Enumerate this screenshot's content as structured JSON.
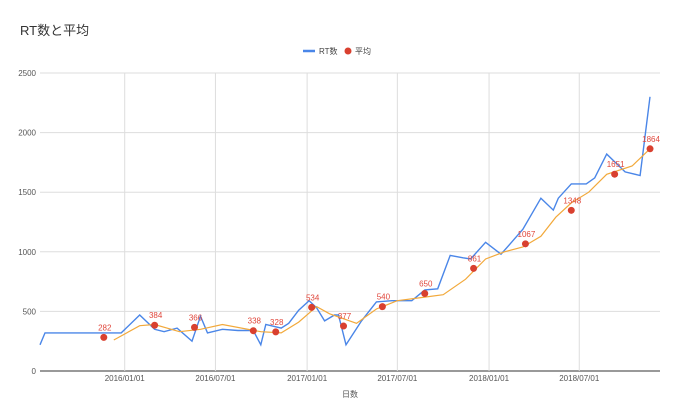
{
  "chart_data": {
    "type": "line",
    "title": "RT数と平均",
    "xlabel": "日数",
    "ylabel": "",
    "ylim": [
      0,
      2500
    ],
    "yticks": [
      0,
      500,
      1000,
      1500,
      2000,
      2500
    ],
    "xlim": [
      "2015-07-15",
      "2018-12-10"
    ],
    "xticks": [
      "2016/01/01",
      "2016/07/01",
      "2017/01/01",
      "2017/07/01",
      "2018/01/01",
      "2018/07/01"
    ],
    "grid": true,
    "legend_position": "top-center",
    "legend": [
      "RT数",
      "平均"
    ],
    "series": [
      {
        "name": "RT数",
        "color": "#4a86e8",
        "x": [
          "2015-07-15",
          "2015-07-25",
          "2015-11-20",
          "2015-12-25",
          "2016-01-31",
          "2016-03-01",
          "2016-03-20",
          "2016-04-15",
          "2016-05-15",
          "2016-06-01",
          "2016-06-15",
          "2016-07-15",
          "2016-08-15",
          "2016-09-15",
          "2016-09-30",
          "2016-10-10",
          "2016-11-10",
          "2016-11-25",
          "2016-12-15",
          "2017-01-05",
          "2017-01-20",
          "2017-02-05",
          "2017-02-25",
          "2017-03-05",
          "2017-03-20",
          "2017-04-20",
          "2017-05-20",
          "2017-06-20",
          "2017-07-30",
          "2017-08-25",
          "2017-09-20",
          "2017-10-15",
          "2017-11-10",
          "2017-11-25",
          "2017-12-25",
          "2018-01-25",
          "2018-02-15",
          "2018-03-10",
          "2018-04-15",
          "2018-05-10",
          "2018-05-20",
          "2018-06-15",
          "2018-07-15",
          "2018-08-01",
          "2018-08-25",
          "2018-10-01",
          "2018-10-31",
          "2018-11-20"
        ],
        "values": [
          220,
          320,
          320,
          320,
          470,
          350,
          330,
          360,
          250,
          460,
          320,
          350,
          340,
          340,
          220,
          390,
          360,
          400,
          510,
          590,
          530,
          420,
          470,
          470,
          220,
          420,
          580,
          590,
          590,
          680,
          690,
          970,
          950,
          940,
          1080,
          980,
          1080,
          1190,
          1450,
          1350,
          1450,
          1570,
          1570,
          1620,
          1820,
          1670,
          1640,
          2300
        ]
      },
      {
        "name": "平均",
        "color": "#f2a93b",
        "x": [
          "2015-12-10",
          "2016-01-31",
          "2016-03-01",
          "2016-04-20",
          "2016-06-01",
          "2016-07-15",
          "2016-09-30",
          "2016-11-10",
          "2016-12-15",
          "2017-01-20",
          "2017-02-15",
          "2017-04-10",
          "2017-05-20",
          "2017-07-01",
          "2017-08-25",
          "2017-10-01",
          "2017-11-15",
          "2017-12-25",
          "2018-02-01",
          "2018-03-10",
          "2018-04-15",
          "2018-05-15",
          "2018-06-15",
          "2018-07-20",
          "2018-08-25",
          "2018-10-15",
          "2018-11-20"
        ],
        "values": [
          260,
          380,
          390,
          330,
          350,
          390,
          330,
          320,
          410,
          540,
          480,
          400,
          520,
          590,
          620,
          640,
          770,
          940,
          1000,
          1040,
          1130,
          1290,
          1410,
          1500,
          1650,
          1720,
          1864
        ]
      }
    ],
    "points": {
      "name": "平均",
      "color": "#d9402f",
      "x": [
        "2015-11-20",
        "2016-03-01",
        "2016-05-20",
        "2016-09-15",
        "2016-10-30",
        "2017-01-10",
        "2017-03-15",
        "2017-06-01",
        "2017-08-25",
        "2017-12-01",
        "2018-03-15",
        "2018-06-15",
        "2018-09-10",
        "2018-11-20"
      ],
      "values": [
        282,
        384,
        366,
        338,
        328,
        534,
        377,
        540,
        650,
        861,
        1067,
        1348,
        1651,
        1864
      ],
      "labels": [
        "282",
        "384",
        "366",
        "338",
        "328",
        "534",
        "377",
        "540",
        "650",
        "861",
        "1067",
        "1348",
        "1651",
        "1864"
      ]
    }
  }
}
